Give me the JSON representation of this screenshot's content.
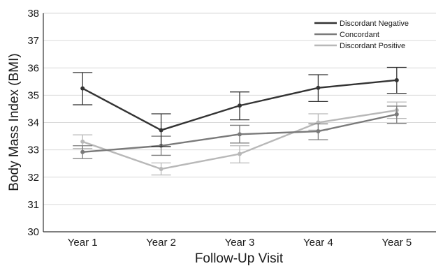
{
  "chart_data": {
    "type": "line",
    "title": "",
    "xlabel": "Follow-Up Visit",
    "ylabel": "Body Mass Index (BMI)",
    "categories": [
      "Year 1",
      "Year 2",
      "Year 3",
      "Year 4",
      "Year 5"
    ],
    "ylim": [
      30,
      38
    ],
    "yticks": [
      30,
      31,
      32,
      33,
      34,
      35,
      36,
      37,
      38
    ],
    "grid": true,
    "legend_position": "top-right",
    "series": [
      {
        "name": "Discordant Negative",
        "color": "#333333",
        "values": [
          35.25,
          33.72,
          34.62,
          35.27,
          35.55
        ],
        "error_low": [
          34.65,
          33.12,
          34.1,
          34.77,
          35.07
        ],
        "error_high": [
          35.83,
          34.32,
          35.12,
          35.75,
          36.02
        ]
      },
      {
        "name": "Concordant",
        "color": "#7a7a7a",
        "values": [
          32.92,
          33.15,
          33.57,
          33.68,
          34.3
        ],
        "error_low": [
          32.68,
          32.8,
          33.25,
          33.37,
          33.97
        ],
        "error_high": [
          33.15,
          33.5,
          33.9,
          33.95,
          34.6
        ]
      },
      {
        "name": "Discordant Positive",
        "color": "#b8b8b8",
        "values": [
          33.3,
          32.3,
          32.85,
          34.0,
          34.45
        ],
        "error_low": [
          33.05,
          32.08,
          32.52,
          33.72,
          34.15
        ],
        "error_high": [
          33.55,
          32.52,
          33.15,
          34.32,
          34.75
        ]
      }
    ]
  }
}
